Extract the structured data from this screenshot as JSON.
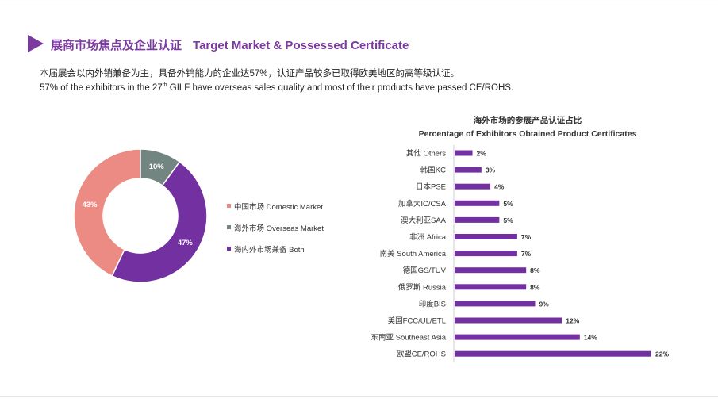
{
  "section": {
    "title_cn": "展商市场焦点及企业认证",
    "title_en": "Target Market & Possessed Certificate",
    "subtitle_cn": "本届展会以内外销兼备为主，具备外销能力的企业达57%，认证产品较多已取得欧美地区的高等级认证。",
    "subtitle_en_pre": "57% of the exhibitors in the 27",
    "subtitle_en_sup": "th",
    "subtitle_en_post": " GILF have overseas sales quality and most of their products have passed CE/ROHS."
  },
  "colors": {
    "accent": "#7b3aa0",
    "domestic": "#ec8a84",
    "overseas": "#738580",
    "both": "#7330a0",
    "bar": "#7330a0"
  },
  "chart_data": [
    {
      "type": "pie",
      "donut": true,
      "categories": [
        "中国市场 Domestic Market",
        "海外市场 Overseas Market",
        "海内外市场兼备 Both"
      ],
      "values": [
        43,
        10,
        47
      ],
      "value_labels": [
        "43%",
        "10%",
        "47%"
      ],
      "legend_position": "right"
    },
    {
      "type": "bar",
      "orientation": "horizontal",
      "title_cn": "海外市场的参展产品认证占比",
      "title_en": "Percentage of Exhibitors Obtained Product Certificates",
      "categories": [
        "其他 Others",
        "韩国KC",
        "日本PSE",
        "加拿大IC/CSA",
        "澳大利亚SAA",
        "非洲 Africa",
        "南美 South America",
        "德国GS/TUV",
        "俄罗斯 Russia",
        "印度BIS",
        "美国FCC/UL/ETL",
        "东南亚 Southeast Asia",
        "欧盟CE/ROHS"
      ],
      "values": [
        2,
        3,
        4,
        5,
        5,
        7,
        7,
        8,
        8,
        9,
        12,
        14,
        22
      ],
      "value_labels": [
        "2%",
        "3%",
        "4%",
        "5%",
        "5%",
        "7%",
        "7%",
        "8%",
        "8%",
        "9%",
        "12%",
        "14%",
        "22%"
      ],
      "unit": "%",
      "grid": false
    }
  ]
}
